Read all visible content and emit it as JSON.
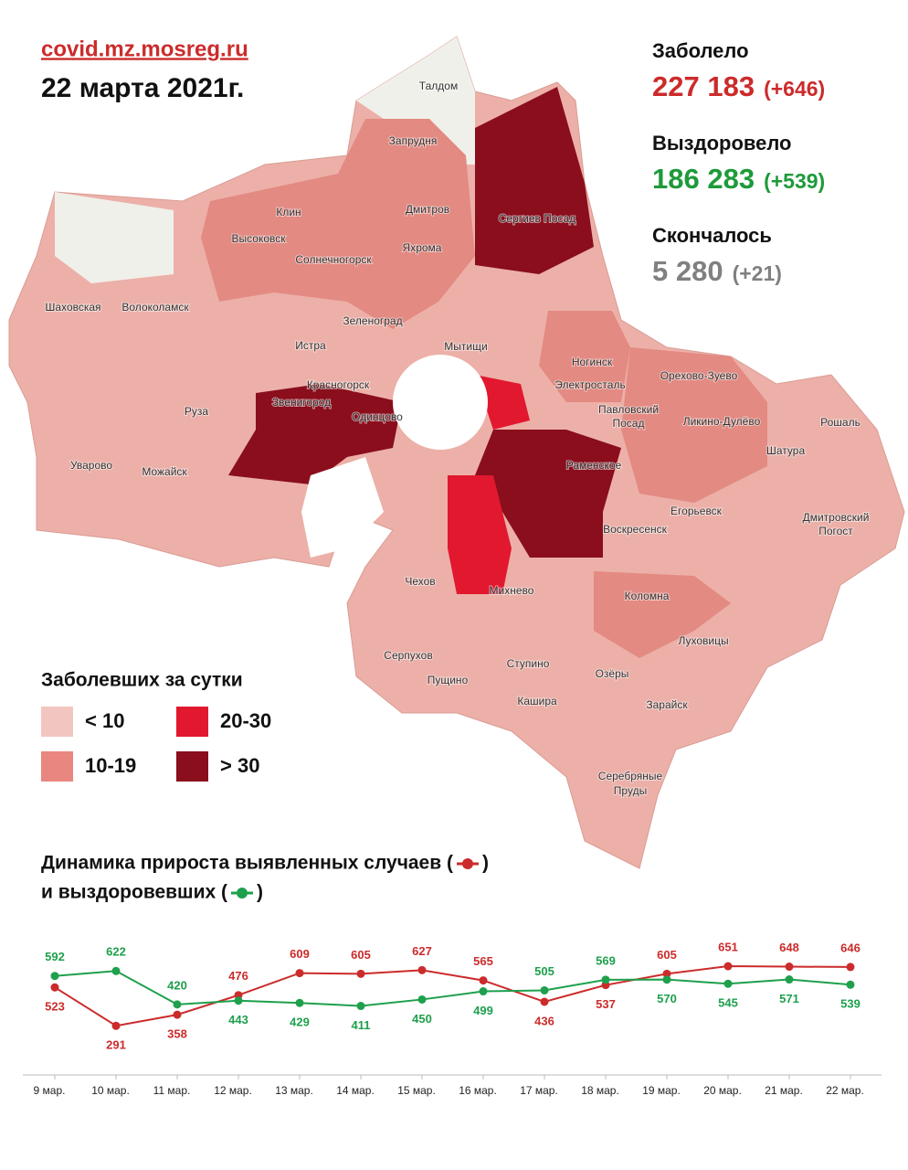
{
  "header": {
    "site": "covid.mz.mosreg.ru",
    "date": "22 марта 2021г."
  },
  "stats": [
    {
      "label": "Заболело",
      "value": "227 183",
      "delta": "(+646)"
    },
    {
      "label": "Выздоровело",
      "value": "186 283",
      "delta": "(+539)"
    },
    {
      "label": "Скончалось",
      "value": "5 280",
      "delta": "(+21)"
    }
  ],
  "legend": {
    "title": "Заболевших за сутки",
    "items": [
      {
        "label": "< 10",
        "color": "#f2c6c0"
      },
      {
        "label": "10-19",
        "color": "#e8867f"
      },
      {
        "label": "20-30",
        "color": "#e2182f"
      },
      {
        "label": "> 30",
        "color": "#8a0e1c"
      }
    ]
  },
  "map": {
    "labels": [
      "Талдом",
      "Запрудня",
      "Клин",
      "Высоковск",
      "Дмитров",
      "Яхрома",
      "Сергиев Посад",
      "Солнечногорск",
      "Шаховская",
      "Волоколамск",
      "Зеленоград",
      "Истра",
      "Мытищи",
      "Ногинск",
      "Орехово-Зуево",
      "Красногорск",
      "Электросталь",
      "Звенигород",
      "Павловский",
      "Посад",
      "Ликино-Дулёво",
      "Одинцово",
      "Руза",
      "Рошаль",
      "Шатура",
      "Уварово",
      "Можайск",
      "Раменское",
      "Егорьевск",
      "Воскресенск",
      "Дмитровский",
      "Погост",
      "Чехов",
      "Михнево",
      "Коломна",
      "Луховицы",
      "Серпухов",
      "Ступино",
      "Пущино",
      "Озёры",
      "Кашира",
      "Зарайск",
      "Серебряные",
      "Пруды"
    ]
  },
  "chart_data": {
    "type": "line",
    "title_lines": [
      [
        "Динамика прироста выявленных случаев (",
        ")"
      ],
      [
        "и выздоровевших (",
        ")"
      ]
    ],
    "categories": [
      "9 мар.",
      "10 мар.",
      "11 мар.",
      "12 мар.",
      "13 мар.",
      "14 мар.",
      "15 мар.",
      "16 мар.",
      "17 мар.",
      "18 мар.",
      "19 мар.",
      "20 мар.",
      "21 мар.",
      "22 мар."
    ],
    "series": [
      {
        "color": "#cc2b2b",
        "values": [
          523,
          291,
          358,
          476,
          609,
          605,
          627,
          565,
          436,
          537,
          605,
          651,
          648,
          646
        ]
      },
      {
        "color": "#1ea04c",
        "values": [
          592,
          622,
          420,
          443,
          429,
          411,
          450,
          499,
          505,
          569,
          570,
          545,
          571,
          539
        ]
      }
    ],
    "ylim": [
      0,
      800
    ]
  }
}
